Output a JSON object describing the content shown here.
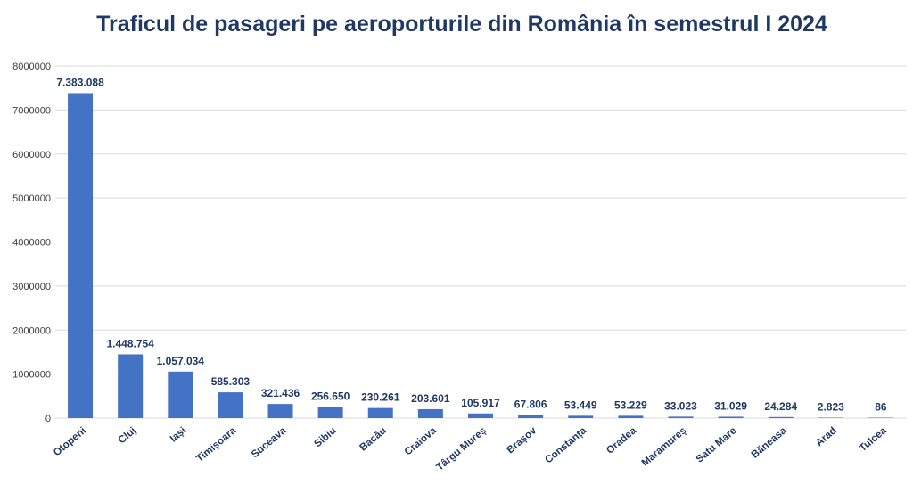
{
  "chart_data": {
    "type": "bar",
    "title": "Traficul de pasageri pe aeroporturile din România în semestrul I 2024",
    "categories": [
      "Otopeni",
      "Cluj",
      "Iași",
      "Timișoara",
      "Suceava",
      "Sibiu",
      "Bacău",
      "Craiova",
      "Târgu Mureș",
      "Brașov",
      "Constanța",
      "Oradea",
      "Maramureș",
      "Satu Mare",
      "Băneasa",
      "Arad",
      "Tulcea"
    ],
    "values": [
      7383088,
      1448754,
      1057034,
      585303,
      321436,
      256650,
      230261,
      203601,
      105917,
      67806,
      53449,
      53229,
      33023,
      31029,
      24284,
      2823,
      86
    ],
    "data_labels": [
      "7.383.088",
      "1.448.754",
      "1.057.034",
      "585.303",
      "321.436",
      "256.650",
      "230.261",
      "203.601",
      "105.917",
      "67.806",
      "53.449",
      "53.229",
      "33.023",
      "31.029",
      "24.284",
      "2.823",
      "86"
    ],
    "ylim": [
      0,
      8000000
    ],
    "yticks": [
      0,
      1000000,
      2000000,
      3000000,
      4000000,
      5000000,
      6000000,
      7000000,
      8000000
    ],
    "ytick_labels": [
      "0",
      "1000000",
      "2000000",
      "3000000",
      "4000000",
      "5000000",
      "6000000",
      "7000000",
      "8000000"
    ],
    "xlabel": "",
    "ylabel": "",
    "grid": true,
    "colors": {
      "bar": "#4472c4",
      "title": "#1f3864",
      "label": "#1f3864",
      "grid": "#d9d9d9",
      "tick": "#404040"
    }
  }
}
